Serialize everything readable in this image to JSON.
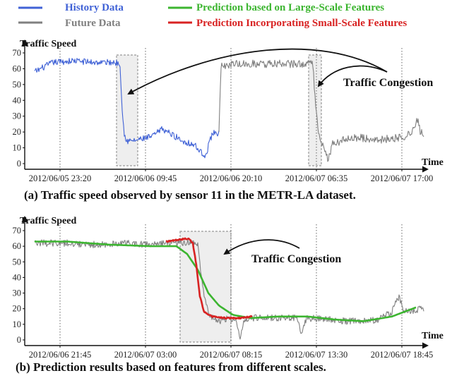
{
  "legend": [
    {
      "label": "History Data",
      "color": "#4062d6"
    },
    {
      "label": "Future  Data",
      "color": "#808080"
    },
    {
      "label": "Prediction based on Large-Scale Features",
      "color": "#3cb530"
    },
    {
      "label": "Prediction Incorporating Small-Scale Features",
      "color": "#d82222"
    }
  ],
  "chart_data": [
    {
      "type": "line",
      "id": "a",
      "ylabel": "Traffic Speed",
      "xlabel": "Time",
      "ylim": [
        0,
        70
      ],
      "yticks": [
        0,
        10,
        20,
        30,
        40,
        50,
        60,
        70
      ],
      "xlim": [
        0,
        565
      ],
      "xticks": [
        {
          "x": 50,
          "label": "2012/06/05 23:20"
        },
        {
          "x": 171,
          "label": "2012/06/06 09:45"
        },
        {
          "x": 292,
          "label": "2012/06/06 20:10"
        },
        {
          "x": 413,
          "label": "2012/06/07 06:35"
        },
        {
          "x": 534,
          "label": "2012/06/07 17:00"
        }
      ],
      "caption": "(a) Traffic speed observed by sensor 11 in the METR-LA dataset.",
      "annotation": "Traffic Congestion",
      "congestion_windows": [
        [
          130,
          160
        ],
        [
          402,
          420
        ]
      ],
      "series": [
        {
          "name": "History Data",
          "color": "#4062d6",
          "x_range": [
            14,
            275
          ],
          "keypoints": [
            [
              14,
              58
            ],
            [
              40,
              64
            ],
            [
              70,
              65
            ],
            [
              100,
              64
            ],
            [
              128,
              64
            ],
            [
              135,
              63
            ],
            [
              138,
              35
            ],
            [
              141,
              18
            ],
            [
              146,
              14
            ],
            [
              160,
              15
            ],
            [
              180,
              17
            ],
            [
              195,
              22
            ],
            [
              210,
              18
            ],
            [
              225,
              14
            ],
            [
              240,
              12
            ],
            [
              250,
              7
            ],
            [
              257,
              5
            ],
            [
              262,
              15
            ],
            [
              268,
              20
            ],
            [
              275,
              19
            ]
          ],
          "noise": 2.0
        },
        {
          "name": "Future  Data",
          "color": "#808080",
          "x_range": [
            275,
            565
          ],
          "keypoints": [
            [
              275,
              19
            ],
            [
              278,
              62
            ],
            [
              300,
              63
            ],
            [
              330,
              63
            ],
            [
              360,
              63
            ],
            [
              390,
              63
            ],
            [
              408,
              63
            ],
            [
              412,
              35
            ],
            [
              416,
              18
            ],
            [
              420,
              15
            ],
            [
              425,
              8
            ],
            [
              430,
              2
            ],
            [
              435,
              12
            ],
            [
              445,
              14
            ],
            [
              460,
              17
            ],
            [
              480,
              16
            ],
            [
              500,
              15
            ],
            [
              520,
              16
            ],
            [
              540,
              17
            ],
            [
              552,
              22
            ],
            [
              556,
              28
            ],
            [
              560,
              20
            ],
            [
              565,
              19
            ]
          ],
          "noise": 2.5
        }
      ]
    },
    {
      "type": "line",
      "id": "b",
      "ylabel": "Traffic Speed",
      "xlabel": "Time",
      "ylim": [
        0,
        70
      ],
      "yticks": [
        0,
        10,
        20,
        30,
        40,
        50,
        60,
        70
      ],
      "xlim": [
        0,
        565
      ],
      "xticks": [
        {
          "x": 50,
          "label": "2012/06/06 21:45"
        },
        {
          "x": 171,
          "label": "2012/06/07 03:00"
        },
        {
          "x": 292,
          "label": "2012/06/07 08:15"
        },
        {
          "x": 413,
          "label": "2012/06/07 13:30"
        },
        {
          "x": 534,
          "label": "2012/06/07 18:45"
        }
      ],
      "caption": "(b) Prediction results based on features from different scales.",
      "annotation": "Traffic Congestion",
      "congestion_windows": [
        [
          220,
          292
        ]
      ],
      "series": [
        {
          "name": "Future  Data",
          "color": "#808080",
          "x_range": [
            14,
            565
          ],
          "keypoints": [
            [
              14,
              62
            ],
            [
              60,
              62
            ],
            [
              100,
              61
            ],
            [
              140,
              62
            ],
            [
              180,
              61
            ],
            [
              215,
              62
            ],
            [
              235,
              63
            ],
            [
              245,
              62
            ],
            [
              250,
              40
            ],
            [
              255,
              25
            ],
            [
              262,
              15
            ],
            [
              275,
              12
            ],
            [
              290,
              14
            ],
            [
              300,
              12
            ],
            [
              305,
              2
            ],
            [
              312,
              14
            ],
            [
              330,
              14
            ],
            [
              360,
              14
            ],
            [
              385,
              14
            ],
            [
              392,
              5
            ],
            [
              400,
              14
            ],
            [
              430,
              13
            ],
            [
              460,
              12
            ],
            [
              500,
              13
            ],
            [
              520,
              18
            ],
            [
              530,
              28
            ],
            [
              536,
              18
            ],
            [
              565,
              20
            ]
          ],
          "noise": 2.2
        },
        {
          "name": "Prediction based on Large-Scale Features",
          "color": "#3cb530",
          "x_range": [
            14,
            555
          ],
          "keypoints": [
            [
              14,
              63
            ],
            [
              60,
              63
            ],
            [
              120,
              61
            ],
            [
              180,
              60
            ],
            [
              215,
              60
            ],
            [
              230,
              55
            ],
            [
              245,
              45
            ],
            [
              260,
              30
            ],
            [
              275,
              22
            ],
            [
              295,
              16
            ],
            [
              320,
              14
            ],
            [
              360,
              15
            ],
            [
              400,
              15
            ],
            [
              440,
              13
            ],
            [
              480,
              12
            ],
            [
              520,
              15
            ],
            [
              555,
              21
            ]
          ],
          "noise": 0
        },
        {
          "name": "Prediction Incorporating Small-Scale Features",
          "color": "#d82222",
          "x_range": [
            200,
            322
          ],
          "keypoints": [
            [
              200,
              63
            ],
            [
              215,
              64
            ],
            [
              232,
              65
            ],
            [
              238,
              62
            ],
            [
              243,
              48
            ],
            [
              248,
              28
            ],
            [
              254,
              18
            ],
            [
              265,
              15
            ],
            [
              285,
              14
            ],
            [
              305,
              14
            ],
            [
              322,
              15
            ]
          ],
          "noise": 0.4
        }
      ]
    }
  ]
}
